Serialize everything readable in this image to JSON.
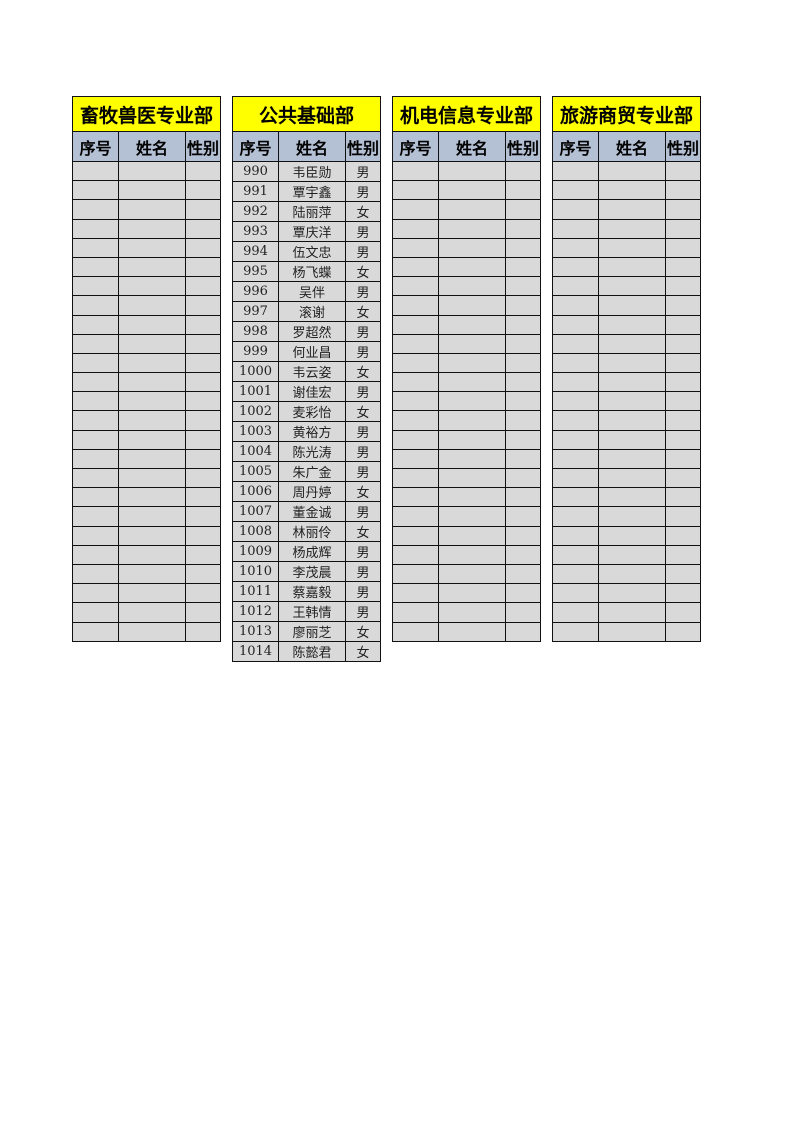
{
  "colors": {
    "title_bg": "#FFFF00",
    "header_bg": "#B4C0D3",
    "cell_bg": "#D9D9D9"
  },
  "tables": [
    {
      "title": "畜牧兽医专业部",
      "headers": [
        "序号",
        "姓名",
        "性别"
      ],
      "rows": []
    },
    {
      "title": "公共基础部",
      "headers": [
        "序号",
        "姓名",
        "性别"
      ],
      "rows": [
        [
          "990",
          "韦臣勋",
          "男"
        ],
        [
          "991",
          "覃宇鑫",
          "男"
        ],
        [
          "992",
          "陆丽萍",
          "女"
        ],
        [
          "993",
          "覃庆洋",
          "男"
        ],
        [
          "994",
          "伍文忠",
          "男"
        ],
        [
          "995",
          "杨飞蝶",
          "女"
        ],
        [
          "996",
          "吴伴",
          "男"
        ],
        [
          "997",
          "滚谢",
          "女"
        ],
        [
          "998",
          "罗超然",
          "男"
        ],
        [
          "999",
          "何业昌",
          "男"
        ],
        [
          "1000",
          "韦云姿",
          "女"
        ],
        [
          "1001",
          "谢佳宏",
          "男"
        ],
        [
          "1002",
          "麦彩怡",
          "女"
        ],
        [
          "1003",
          "黄裕方",
          "男"
        ],
        [
          "1004",
          "陈光涛",
          "男"
        ],
        [
          "1005",
          "朱广金",
          "男"
        ],
        [
          "1006",
          "周丹婷",
          "女"
        ],
        [
          "1007",
          "董金诚",
          "男"
        ],
        [
          "1008",
          "林丽伶",
          "女"
        ],
        [
          "1009",
          "杨成辉",
          "男"
        ],
        [
          "1010",
          "李茂晨",
          "男"
        ],
        [
          "1011",
          "蔡嘉毅",
          "男"
        ],
        [
          "1012",
          "王韩情",
          "男"
        ],
        [
          "1013",
          "廖丽芝",
          "女"
        ],
        [
          "1014",
          "陈懿君",
          "女"
        ]
      ]
    },
    {
      "title": "机电信息专业部",
      "headers": [
        "序号",
        "姓名",
        "性别"
      ],
      "rows": []
    },
    {
      "title": "旅游商贸专业部",
      "headers": [
        "序号",
        "姓名",
        "性别"
      ],
      "rows": []
    }
  ]
}
